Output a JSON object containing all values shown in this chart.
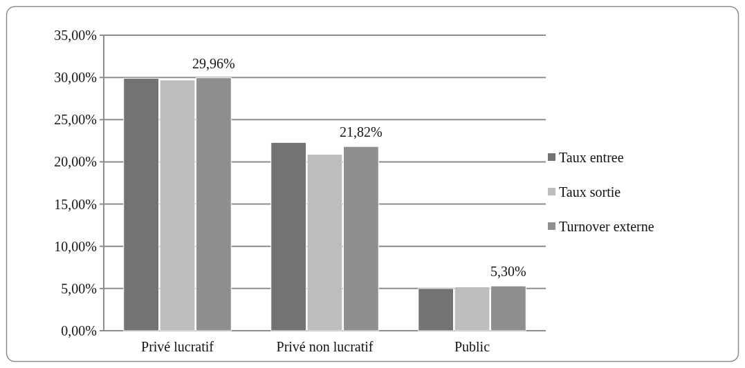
{
  "chart_data": {
    "type": "bar",
    "categories": [
      "Privé lucratif",
      "Privé non lucratif",
      "Public"
    ],
    "series": [
      {
        "name": "Taux entree",
        "color": "#737373",
        "values": [
          29.9,
          22.3,
          5.0
        ]
      },
      {
        "name": "Taux sortie",
        "color": "#bdbdbd",
        "values": [
          29.7,
          20.9,
          5.2
        ]
      },
      {
        "name": "Turnover externe",
        "color": "#8f8f8f",
        "values": [
          29.96,
          21.82,
          5.3
        ],
        "value_labels": [
          "29,96%",
          "21,82%",
          "5,30%"
        ]
      }
    ],
    "ylim": [
      0,
      35
    ],
    "yticks": [
      {
        "value": 0,
        "label": "0,00%"
      },
      {
        "value": 5,
        "label": "5,00%"
      },
      {
        "value": 10,
        "label": "10,00%"
      },
      {
        "value": 15,
        "label": "15,00%"
      },
      {
        "value": 20,
        "label": "20,00%"
      },
      {
        "value": 25,
        "label": "25,00%"
      },
      {
        "value": 30,
        "label": "30,00%"
      },
      {
        "value": 35,
        "label": "35,00%"
      }
    ],
    "grid": "y",
    "legend": "right"
  }
}
